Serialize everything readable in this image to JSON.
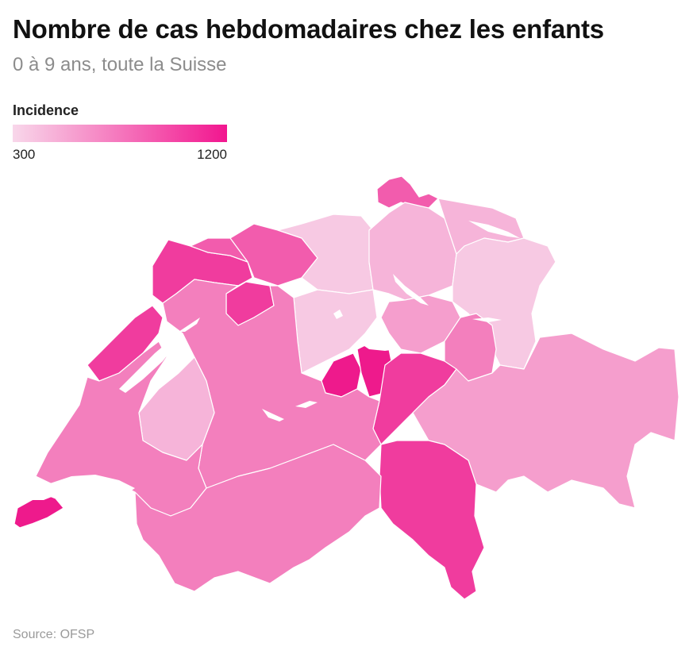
{
  "header": {
    "title": "Nombre de cas hebdomadaires chez les enfants",
    "subtitle": "0 à 9 ans, toute la Suisse"
  },
  "legend": {
    "title": "Incidence",
    "min_label": "300",
    "max_label": "1200",
    "color_low": "#f8d7ea",
    "color_high": "#f2168f"
  },
  "footer": {
    "source": "Source: OFSP"
  },
  "colors": {
    "very_light": "#f7c9e3",
    "light": "#f6b4d9",
    "medium_light": "#f59ecd",
    "medium": "#f37fbd",
    "medium_dark": "#f25cad",
    "dark": "#f03c9e",
    "darkest": "#ee1a8c"
  }
}
